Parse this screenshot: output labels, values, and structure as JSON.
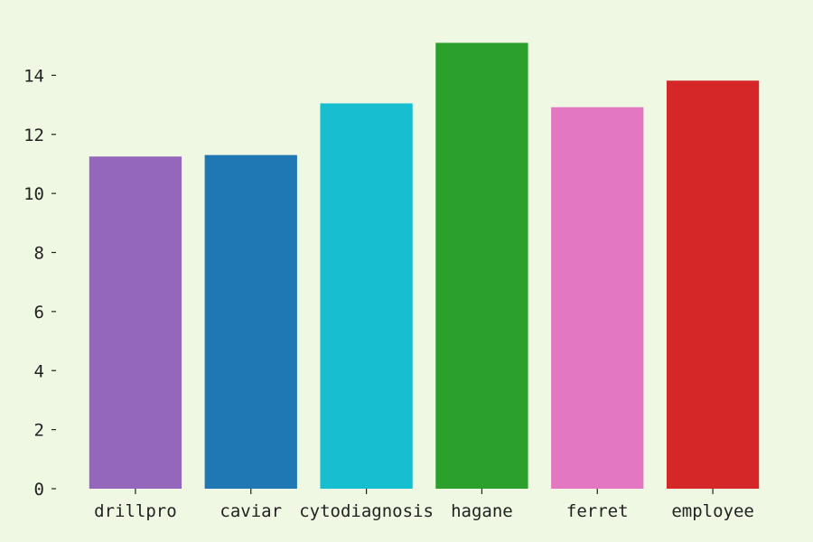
{
  "chart_data": {
    "type": "bar",
    "categories": [
      "drillpro",
      "caviar",
      "cytodiagnosis",
      "hagane",
      "ferret",
      "employee"
    ],
    "values": [
      11.25,
      11.3,
      13.05,
      15.1,
      12.92,
      13.82
    ],
    "colors": [
      "#9467bd",
      "#1f77b4",
      "#17becf",
      "#2ca02c",
      "#e377c2",
      "#d62728"
    ],
    "ylim": [
      0,
      16
    ],
    "yticks": [
      0,
      2,
      4,
      6,
      8,
      10,
      12,
      14
    ],
    "title": "",
    "xlabel": "",
    "ylabel": "",
    "grid": false,
    "background": "#eef8e2"
  }
}
